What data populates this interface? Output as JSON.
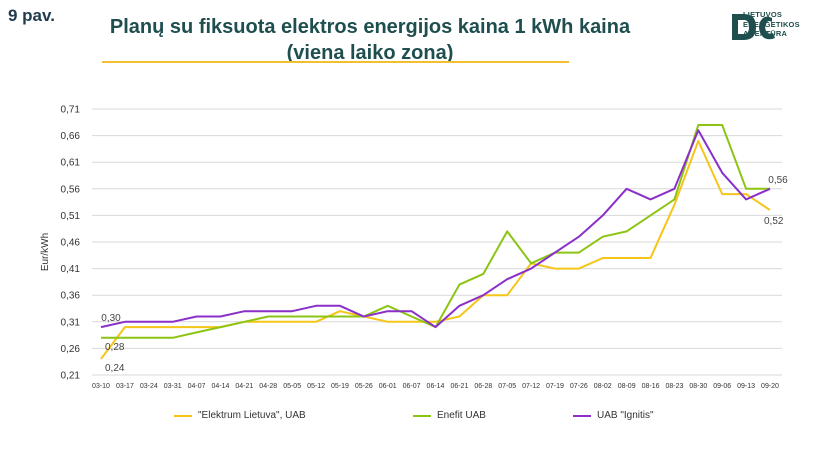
{
  "figure_label": "9 pav.",
  "title_line1": "Planų su fiksuota elektros energijos kaina 1 kWh kaina",
  "title_line2": "(viena laiko zona)",
  "logo": {
    "line1": "LIETUVOS",
    "line2": "ENERGETIKOS",
    "line3": "AGENTŪRA",
    "color": "#1f4e4e"
  },
  "chart_data": {
    "type": "line",
    "ylabel": "Eur/kWh",
    "xlabel": "",
    "ylim": [
      0.21,
      0.71
    ],
    "yticks": [
      "0,21",
      "0,26",
      "0,31",
      "0,36",
      "0,41",
      "0,46",
      "0,51",
      "0,56",
      "0,61",
      "0,66",
      "0,71"
    ],
    "categories": [
      "03-10",
      "03-17",
      "03-24",
      "03-31",
      "04-07",
      "04-14",
      "04-21",
      "04-28",
      "05-05",
      "05-12",
      "05-19",
      "05-26",
      "06-01",
      "06-07",
      "06-14",
      "06-21",
      "06-28",
      "07-05",
      "07-12",
      "07-19",
      "07-26",
      "08-02",
      "08-09",
      "08-16",
      "08-23",
      "08-30",
      "09-06",
      "09-13",
      "09-20"
    ],
    "series": [
      {
        "name": "\"Elektrum Lietuva\", UAB",
        "color": "#f5c518",
        "values": [
          0.24,
          0.3,
          0.3,
          0.3,
          0.3,
          0.3,
          0.31,
          0.31,
          0.31,
          0.31,
          0.33,
          0.32,
          0.31,
          0.31,
          0.31,
          0.32,
          0.36,
          0.36,
          0.42,
          0.41,
          0.41,
          0.43,
          0.43,
          0.43,
          0.53,
          0.65,
          0.55,
          0.55,
          0.52
        ]
      },
      {
        "name": "Enefit UAB",
        "color": "#8cc414",
        "values": [
          0.28,
          0.28,
          0.28,
          0.28,
          0.29,
          0.3,
          0.31,
          0.32,
          0.32,
          0.32,
          0.32,
          0.32,
          0.34,
          0.32,
          0.3,
          0.38,
          0.4,
          0.48,
          0.42,
          0.44,
          0.44,
          0.47,
          0.48,
          0.51,
          0.54,
          0.68,
          0.68,
          0.56,
          0.56
        ]
      },
      {
        "name": "UAB \"Ignitis\"",
        "color": "#8b2fc9",
        "values": [
          0.3,
          0.31,
          0.31,
          0.31,
          0.32,
          0.32,
          0.33,
          0.33,
          0.33,
          0.34,
          0.34,
          0.32,
          0.33,
          0.33,
          0.3,
          0.34,
          0.36,
          0.39,
          0.41,
          0.44,
          0.47,
          0.51,
          0.56,
          0.54,
          0.56,
          0.67,
          0.59,
          0.54,
          0.56
        ]
      }
    ],
    "annotations": [
      {
        "series": 2,
        "index": 0,
        "text": "0,30",
        "pos": "above"
      },
      {
        "series": 1,
        "index": 0,
        "text": "0,28",
        "pos": "below"
      },
      {
        "series": 0,
        "index": 0,
        "text": "0,24",
        "pos": "below"
      },
      {
        "series": 2,
        "index": 28,
        "text": "0,56",
        "pos": "above"
      },
      {
        "series": 0,
        "index": 28,
        "text": "0,52",
        "pos": "right"
      }
    ],
    "grid": true,
    "legend": "bottom"
  }
}
